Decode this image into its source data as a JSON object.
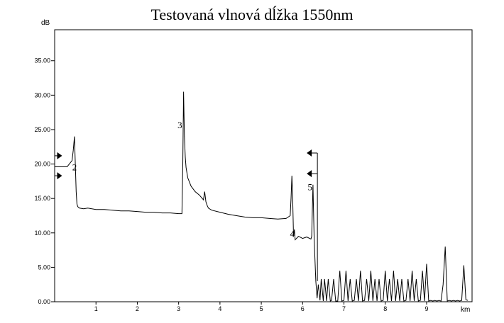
{
  "chart_data": {
    "type": "line",
    "title": "Testovaná vlnová dĺžka 1550nm",
    "ylabel": "dB",
    "xlabel": "km",
    "xlim": [
      0,
      10.1
    ],
    "ylim": [
      0,
      39.5
    ],
    "grid": false,
    "y_ticks": [
      0,
      5,
      10,
      15,
      20,
      25,
      30,
      35
    ],
    "y_tick_labels": [
      "0.00",
      "5.00",
      "10.00",
      "15.00",
      "20.00",
      "25.00",
      "30.00",
      "35.00"
    ],
    "x_ticks": [
      1,
      2,
      3,
      4,
      5,
      6,
      7,
      8,
      9
    ],
    "x_tick_labels": [
      "1",
      "2",
      "3",
      "4",
      "5",
      "6",
      "7",
      "8",
      "9"
    ],
    "series": [
      {
        "color": "#000000",
        "x": [
          0.0,
          0.1,
          0.2,
          0.3,
          0.42,
          0.45,
          0.48,
          0.5,
          0.52,
          0.54,
          0.56,
          0.6,
          0.7,
          0.8,
          1.0,
          1.2,
          1.4,
          1.6,
          1.8,
          2.0,
          2.2,
          2.4,
          2.6,
          2.8,
          3.0,
          3.08,
          3.1,
          3.12,
          3.14,
          3.16,
          3.18,
          3.22,
          3.3,
          3.4,
          3.5,
          3.6,
          3.63,
          3.66,
          3.69,
          3.72,
          3.8,
          4.0,
          4.2,
          4.4,
          4.6,
          4.8,
          5.0,
          5.2,
          5.4,
          5.6,
          5.7,
          5.72,
          5.74,
          5.76,
          5.78,
          5.8,
          5.82,
          5.9,
          6.0,
          6.1,
          6.2,
          6.22,
          6.25,
          6.28,
          6.32,
          6.35,
          6.38,
          6.42,
          6.45,
          6.5,
          6.53,
          6.58,
          6.62,
          6.67,
          6.7,
          6.75,
          6.8,
          6.85,
          6.9,
          6.95,
          7.0,
          7.05,
          7.1,
          7.15,
          7.2,
          7.25,
          7.3,
          7.35,
          7.4,
          7.45,
          7.5,
          7.55,
          7.6,
          7.65,
          7.7,
          7.75,
          7.8,
          7.85,
          7.9,
          7.95,
          8.0,
          8.05,
          8.1,
          8.15,
          8.2,
          8.25,
          8.3,
          8.35,
          8.4,
          8.45,
          8.5,
          8.55,
          8.6,
          8.65,
          8.7,
          8.75,
          8.8,
          8.85,
          8.9,
          8.95,
          9.0,
          9.05,
          9.1,
          9.15,
          9.2,
          9.25,
          9.3,
          9.35,
          9.4,
          9.45,
          9.5,
          9.55,
          9.6,
          9.65,
          9.7,
          9.75,
          9.8,
          9.85,
          9.9,
          9.95,
          10.0
        ],
        "values": [
          19.6,
          19.6,
          19.6,
          19.6,
          20.5,
          22.0,
          24.0,
          20.0,
          16.0,
          14.2,
          13.8,
          13.6,
          13.5,
          13.6,
          13.4,
          13.4,
          13.3,
          13.2,
          13.2,
          13.1,
          13.0,
          13.0,
          12.9,
          12.9,
          12.8,
          12.8,
          20.0,
          30.5,
          24.0,
          21.0,
          19.5,
          18.0,
          16.8,
          16.0,
          15.5,
          14.8,
          16.0,
          14.5,
          14.0,
          13.6,
          13.3,
          13.0,
          12.7,
          12.5,
          12.3,
          12.2,
          12.2,
          12.1,
          12.0,
          12.1,
          12.5,
          15.0,
          18.3,
          15.0,
          9.5,
          10.5,
          9.0,
          9.5,
          9.2,
          9.4,
          9.1,
          9.5,
          17.0,
          9.0,
          3.0,
          0.5,
          2.5,
          0.2,
          3.3,
          0.1,
          3.3,
          0.1,
          3.3,
          0.1,
          0.2,
          3.3,
          0.1,
          0.1,
          4.5,
          0.1,
          0.2,
          4.5,
          0.1,
          3.3,
          0.1,
          0.2,
          3.3,
          0.1,
          4.5,
          0.1,
          0.2,
          3.3,
          0.1,
          4.5,
          0.1,
          3.3,
          0.1,
          3.3,
          0.1,
          0.2,
          4.5,
          0.1,
          3.3,
          0.1,
          4.5,
          0.1,
          3.3,
          0.1,
          3.3,
          0.1,
          0.2,
          3.3,
          0.1,
          4.5,
          0.1,
          3.3,
          0.1,
          0.2,
          4.5,
          0.1,
          5.5,
          0.1,
          0.2,
          0.1,
          0.2,
          0.1,
          0.2,
          0.1,
          2.5,
          8.0,
          0.1,
          0.2,
          0.1,
          0.2,
          0.1,
          0.2,
          0.1,
          0.2,
          5.3,
          0.3,
          0.2
        ]
      }
    ],
    "events": [
      {
        "label": "2",
        "x": 0.48,
        "y": 19.1
      },
      {
        "label": "3",
        "x": 3.03,
        "y": 25.2
      },
      {
        "label": "4",
        "x": 5.75,
        "y": 9.4
      },
      {
        "label": "5",
        "x": 6.18,
        "y": 16.2
      }
    ],
    "markers": [
      {
        "direction": "right",
        "x": 0.18,
        "y": 21.2
      },
      {
        "direction": "right",
        "x": 0.18,
        "y": 18.3
      },
      {
        "direction": "left",
        "x": 6.1,
        "y": 21.6
      },
      {
        "direction": "left",
        "x": 6.1,
        "y": 18.6
      }
    ]
  }
}
